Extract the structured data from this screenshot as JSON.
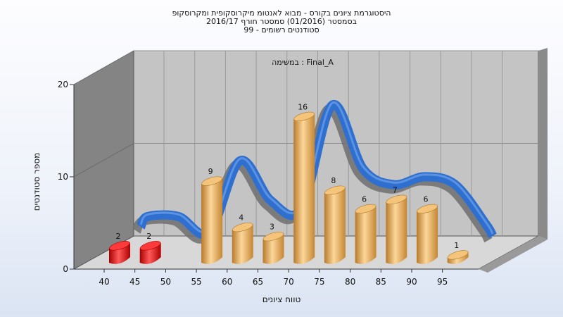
{
  "chart_data": {
    "type": "bar",
    "title_lines": [
      "היסטוגרמת ציונים בקורס - מבוא לאנטומ מיקרוסקופית ומקרוסקופ",
      "בסמסטר  (01/2016)  סמסטר חורף 2016/17",
      "סטודנטים רשומים - 99"
    ],
    "annotation": "במשימה : Final_A",
    "xlabel": "טווח ציונים",
    "ylabel": "מספר סטודנטים",
    "categories": [
      "40",
      "45",
      "50",
      "55",
      "60",
      "65",
      "70",
      "75",
      "80",
      "85",
      "90",
      "95"
    ],
    "series": [
      {
        "values": [
          2,
          2,
          0,
          9,
          4,
          3,
          16,
          8,
          6,
          7,
          6,
          1
        ],
        "colors": [
          "#e01010",
          "#e01010",
          "#e8a848",
          "#e8a848",
          "#e8a848",
          "#e8a848",
          "#e8a848",
          "#e8a848",
          "#e8a848",
          "#e8a848",
          "#e8a848",
          "#e8a848"
        ]
      }
    ],
    "yticks": [
      0,
      10,
      20
    ],
    "ylim": [
      0,
      20
    ],
    "trend_color": "#2f6fcf",
    "grid": true
  }
}
